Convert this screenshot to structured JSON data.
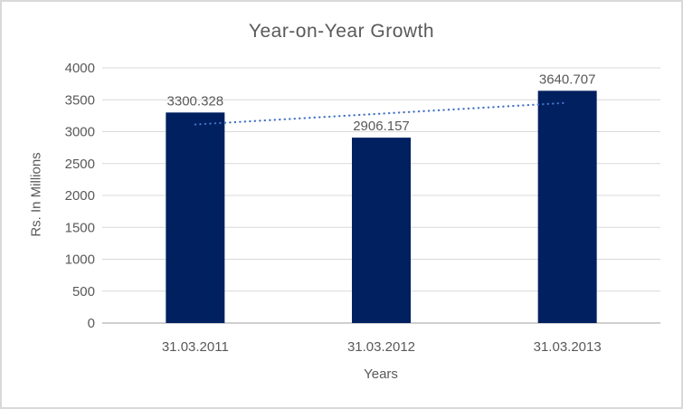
{
  "chart_data": {
    "type": "bar",
    "title": "Year-on-Year Growth",
    "xlabel": "Years",
    "ylabel": "Rs. In Millions",
    "categories": [
      "31.03.2011",
      "31.03.2012",
      "31.03.2013"
    ],
    "values": [
      3300.328,
      2906.157,
      3640.707
    ],
    "data_labels": [
      "3300.328",
      "2906.157",
      "3640.707"
    ],
    "ylim": [
      0,
      4000
    ],
    "yticks": [
      0,
      500,
      1000,
      1500,
      2000,
      2500,
      3000,
      3500,
      4000
    ],
    "grid": "horizontal",
    "legend": "none",
    "trendline": {
      "type": "linear",
      "style": "dotted",
      "color": "#4472C4"
    },
    "colors": {
      "bar": "#002060",
      "gridline": "#d9d9d9",
      "axis_line": "#bfbfbf",
      "text": "#595959",
      "background": "#ffffff",
      "border": "#d9d9d9"
    }
  }
}
